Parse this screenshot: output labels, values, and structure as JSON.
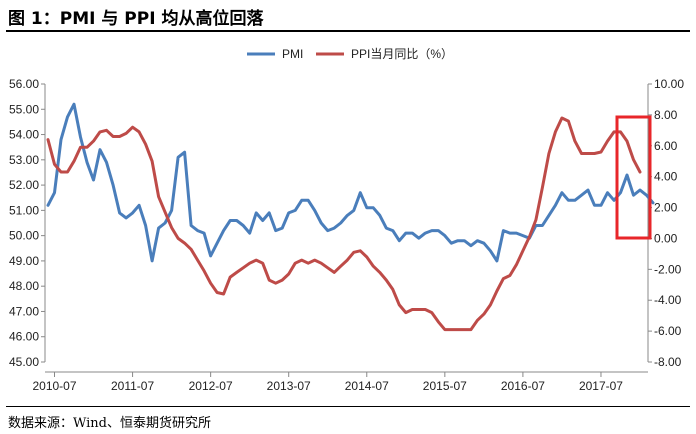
{
  "title": "图 1：PMI 与 PPI 均从高位回落",
  "source": "数据来源：Wind、恒泰期货研究所",
  "colors": {
    "pmi": "#4a7ebb",
    "ppi": "#be4b48",
    "highlight": "#e8262a"
  },
  "chart_data": {
    "type": "line",
    "legend": {
      "placement": "top",
      "entries": [
        "PMI",
        "PPI当月同比（%）"
      ]
    },
    "grid": false,
    "x_tick_labels": [
      "2010-07",
      "2011-07",
      "2012-07",
      "2013-07",
      "2014-07",
      "2015-07",
      "2016-07",
      "2017-07"
    ],
    "x_range": [
      "2010-06",
      "2018-01"
    ],
    "y_left": {
      "range": [
        45,
        56
      ],
      "tick_labels": [
        "45.00",
        "46.00",
        "47.00",
        "48.00",
        "49.00",
        "50.00",
        "51.00",
        "52.00",
        "53.00",
        "54.00",
        "55.00",
        "56.00"
      ]
    },
    "y_right": {
      "range": [
        -8,
        10
      ],
      "tick_labels": [
        "-8.00",
        "-6.00",
        "-4.00",
        "-2.00",
        "0.00",
        "2.00",
        "4.00",
        "6.00",
        "8.00",
        "10.00"
      ]
    },
    "series": [
      {
        "name": "PMI",
        "axis": "left",
        "start": "2010-06",
        "values": [
          51.2,
          51.7,
          53.8,
          54.7,
          55.2,
          53.9,
          52.9,
          52.2,
          53.4,
          52.9,
          52.0,
          50.9,
          50.7,
          50.9,
          51.2,
          50.4,
          49.0,
          50.3,
          50.5,
          51.0,
          53.1,
          53.3,
          50.4,
          50.2,
          50.1,
          49.2,
          49.7,
          50.2,
          50.6,
          50.6,
          50.4,
          50.1,
          50.9,
          50.6,
          50.9,
          50.2,
          50.3,
          50.9,
          51.0,
          51.4,
          51.4,
          51.0,
          50.5,
          50.2,
          50.3,
          50.5,
          50.8,
          51.0,
          51.7,
          51.1,
          51.1,
          50.8,
          50.3,
          50.2,
          49.8,
          50.1,
          50.1,
          49.9,
          50.1,
          50.2,
          50.2,
          50.0,
          49.7,
          49.8,
          49.8,
          49.6,
          49.8,
          49.7,
          49.4,
          49.0,
          50.2,
          50.1,
          50.1,
          50.0,
          49.9,
          50.4,
          50.4,
          50.8,
          51.2,
          51.7,
          51.4,
          51.4,
          51.6,
          51.8,
          51.2,
          51.2,
          51.7,
          51.4,
          51.7,
          52.4,
          51.6,
          51.8,
          51.6,
          51.3
        ]
      },
      {
        "name": "PPI当月同比（%）",
        "axis": "right",
        "start": "2010-06",
        "values": [
          6.4,
          4.8,
          4.3,
          4.3,
          5.0,
          5.9,
          5.9,
          6.3,
          6.9,
          7.0,
          6.6,
          6.6,
          6.8,
          7.2,
          6.9,
          6.1,
          5.0,
          2.7,
          1.7,
          0.7,
          0.0,
          -0.3,
          -0.7,
          -1.4,
          -2.1,
          -2.9,
          -3.5,
          -3.6,
          -2.5,
          -2.2,
          -1.9,
          -1.6,
          -1.4,
          -1.6,
          -2.7,
          -2.9,
          -2.7,
          -2.3,
          -1.6,
          -1.4,
          -1.6,
          -1.4,
          -1.6,
          -1.9,
          -2.2,
          -1.8,
          -1.4,
          -0.9,
          -0.8,
          -1.2,
          -1.8,
          -2.2,
          -2.7,
          -3.3,
          -4.3,
          -4.8,
          -4.6,
          -4.6,
          -4.6,
          -4.8,
          -5.4,
          -5.9,
          -5.9,
          -5.9,
          -5.9,
          -5.9,
          -5.3,
          -4.9,
          -4.3,
          -3.4,
          -2.6,
          -2.4,
          -1.7,
          -0.8,
          0.1,
          1.2,
          3.3,
          5.5,
          6.9,
          7.8,
          7.6,
          6.3,
          5.5,
          5.5,
          5.5,
          5.6,
          6.3,
          6.9,
          6.9,
          6.3,
          5.1,
          4.3
        ]
      }
    ]
  }
}
